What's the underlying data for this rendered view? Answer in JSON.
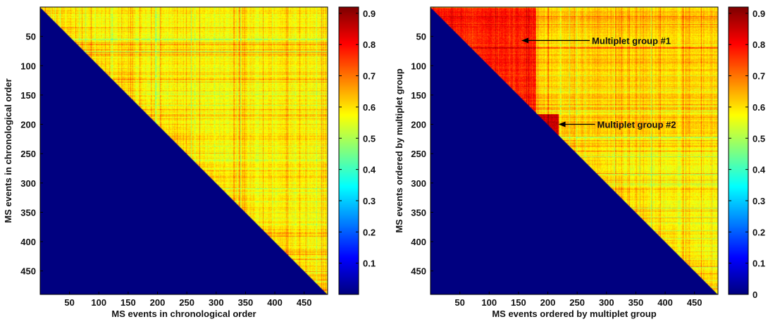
{
  "chart_data": [
    {
      "type": "heatmap",
      "title": "",
      "xlabel": "MS events in chronological order",
      "ylabel": "MS events in chronological order",
      "xlim": [
        0,
        490
      ],
      "ylim": [
        0,
        490
      ],
      "y_reversed": true,
      "x_ticks": [
        50,
        100,
        150,
        200,
        250,
        300,
        350,
        400,
        450
      ],
      "y_ticks": [
        50,
        100,
        150,
        200,
        250,
        300,
        350,
        400,
        450
      ],
      "colorbar": {
        "min": 0,
        "max": 0.92,
        "ticks": [
          0.1,
          0.2,
          0.3,
          0.4,
          0.5,
          0.6,
          0.7,
          0.8,
          0.9
        ],
        "colormap": "jet"
      },
      "lower_triangle_value": 0,
      "typical_value": 0.58,
      "annotations": []
    },
    {
      "type": "heatmap",
      "title": "",
      "xlabel": "MS events ordered by multiplet group",
      "ylabel": "MS events ordered by multiplet group",
      "xlim": [
        0,
        490
      ],
      "ylim": [
        0,
        490
      ],
      "y_reversed": true,
      "x_ticks": [
        50,
        100,
        150,
        200,
        250,
        300,
        350,
        400,
        450
      ],
      "y_ticks": [
        50,
        100,
        150,
        200,
        250,
        300,
        350,
        400,
        450
      ],
      "colorbar": {
        "min": 0,
        "max": 0.92,
        "ticks": [
          0,
          0.1,
          0.2,
          0.3,
          0.4,
          0.5,
          0.6,
          0.7,
          0.8,
          0.9
        ],
        "colormap": "jet"
      },
      "lower_triangle_value": 0,
      "typical_value": 0.58,
      "groups": [
        {
          "name": "Multiplet group #1",
          "start": 1,
          "end": 180,
          "value": 0.78
        },
        {
          "name": "Multiplet group #2",
          "start": 182,
          "end": 218,
          "value": 0.85
        }
      ],
      "annotations": [
        {
          "text": "Multiplet group #1",
          "x": 155,
          "y": 57
        },
        {
          "text": "Multiplet group #2",
          "x": 218,
          "y": 200
        }
      ]
    }
  ]
}
